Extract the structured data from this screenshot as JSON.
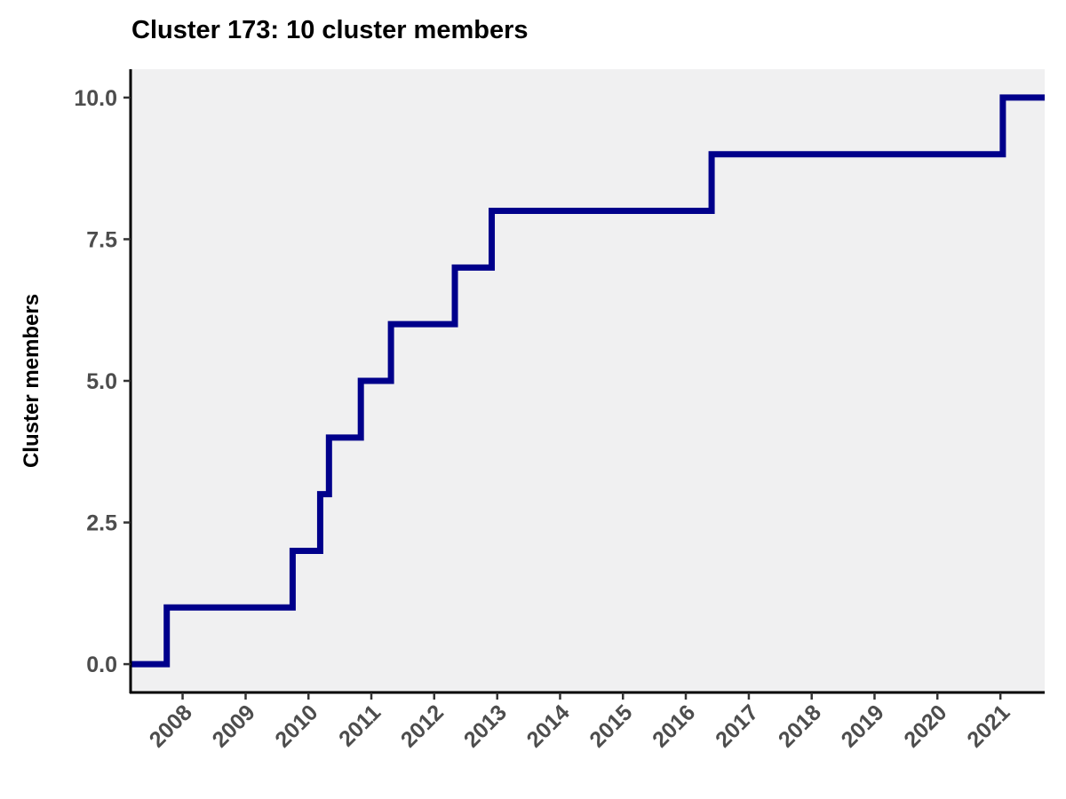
{
  "chart_data": {
    "type": "line",
    "step": "post",
    "title": "Cluster 173: 10 cluster members",
    "xlabel": "",
    "ylabel": "Cluster members",
    "x_type": "date",
    "xlim": [
      "2007-03-05",
      "2021-09-15"
    ],
    "ylim": [
      -0.5,
      10.5
    ],
    "x_ticks": [
      "2008",
      "2009",
      "2010",
      "2011",
      "2012",
      "2013",
      "2014",
      "2015",
      "2016",
      "2017",
      "2018",
      "2019",
      "2020",
      "2021"
    ],
    "y_ticks": [
      "0.0",
      "2.5",
      "5.0",
      "7.5",
      "10.0"
    ],
    "y_tick_values": [
      0,
      2.5,
      5,
      7.5,
      10
    ],
    "grid": false,
    "legend": "none",
    "panel_background": "#f0f0f1",
    "line_color": "#00008b",
    "series": [
      {
        "x": [
          "2007-03-05",
          "2007-10-01",
          "2009-10-01",
          "2010-03-10",
          "2010-04-30",
          "2010-11-01",
          "2011-04-25",
          "2012-04-30",
          "2012-11-30",
          "2016-05-30",
          "2021-01-15",
          "2021-09-15"
        ],
        "values": [
          0,
          1,
          2,
          3,
          4,
          5,
          6,
          7,
          8,
          9,
          10,
          10
        ]
      }
    ]
  }
}
